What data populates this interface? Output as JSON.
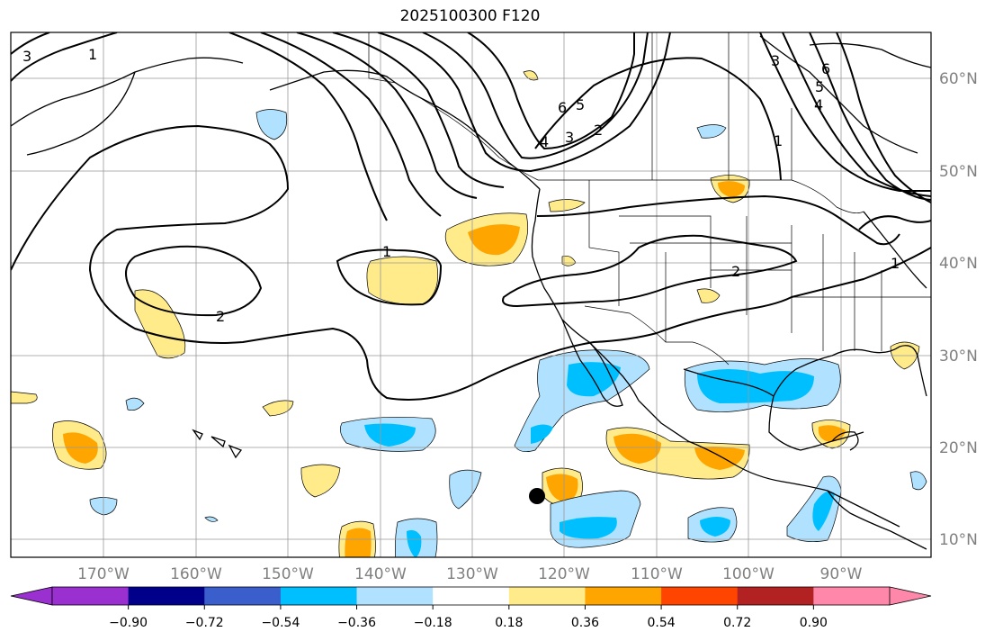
{
  "title": "2025100300 F120",
  "lat_labels": [
    "60°N",
    "50°N",
    "40°N",
    "30°N",
    "20°N",
    "10°N"
  ],
  "lon_labels": [
    "170°W",
    "160°W",
    "150°W",
    "140°W",
    "130°W",
    "120°W",
    "110°W",
    "100°W",
    "90°W"
  ],
  "colorbar": {
    "colors": [
      "#9b30d0",
      "#00008b",
      "#3a5ecb",
      "#00bfff",
      "#b0e2ff",
      "#ffffff",
      "#ffeb8a",
      "#ffa500",
      "#ff4500",
      "#b22222",
      "#ff88aa"
    ],
    "ticks": [
      "−0.90",
      "−0.72",
      "−0.54",
      "−0.36",
      "−0.18",
      "0.18",
      "0.36",
      "0.54",
      "0.72",
      "0.90"
    ]
  },
  "contour_labels": {
    "c1": "3",
    "c2": "1",
    "c3": "6",
    "c4": "5",
    "c5": "4",
    "c6": "3",
    "c7": "2",
    "c8": "3",
    "c9": "6",
    "c10": "5",
    "c11": "4",
    "c12": "1",
    "c13": "1",
    "c14": "2",
    "c15": "2",
    "c16": "1"
  },
  "marker": "storm-position"
}
